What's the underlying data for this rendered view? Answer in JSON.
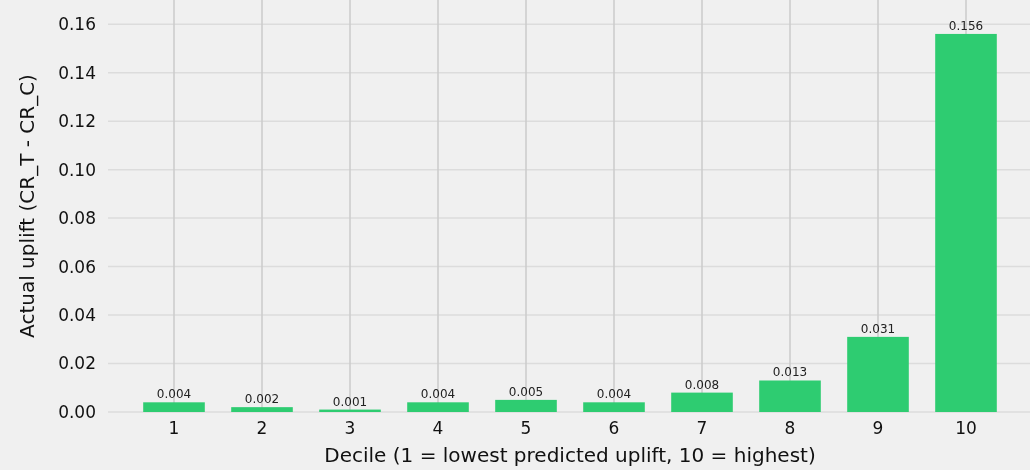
{
  "chart_data": {
    "type": "bar",
    "xlabel": "Decile (1 = lowest predicted uplift, 10 = highest)",
    "ylabel": "Actual uplift (CR_T - CR_C)",
    "categories": [
      "1",
      "2",
      "3",
      "4",
      "5",
      "6",
      "7",
      "8",
      "9",
      "10"
    ],
    "values": [
      0.004,
      0.002,
      0.001,
      0.004,
      0.005,
      0.004,
      0.008,
      0.013,
      0.031,
      0.156
    ],
    "color": "#2ecc71",
    "ylim": [
      0,
      0.17
    ],
    "yticks": [
      {
        "value": 0,
        "label": "0.00"
      },
      {
        "value": 0.02,
        "label": "0.02"
      },
      {
        "value": 0.04,
        "label": "0.04"
      },
      {
        "value": 0.06,
        "label": "0.06"
      },
      {
        "value": 0.08,
        "label": "0.08"
      },
      {
        "value": 0.1,
        "label": "0.10"
      },
      {
        "value": 0.12,
        "label": "0.12"
      },
      {
        "value": 0.14,
        "label": "0.14"
      },
      {
        "value": 0.16,
        "label": "0.16"
      }
    ],
    "grid": true,
    "data_labels": true
  }
}
